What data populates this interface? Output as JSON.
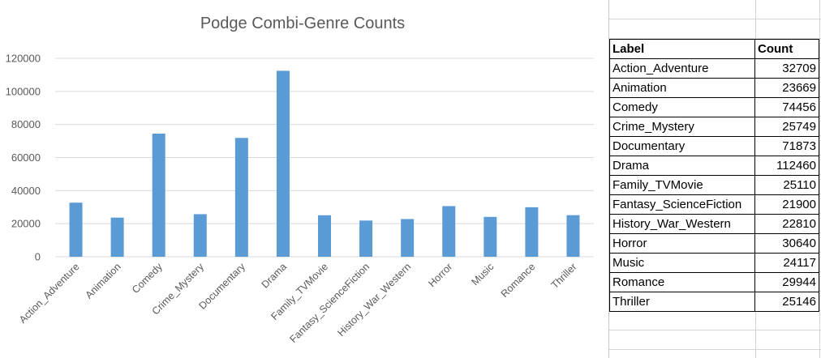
{
  "chart_data": {
    "type": "bar",
    "title": "Podge Combi-Genre Counts",
    "categories": [
      "Action_Adventure",
      "Animation",
      "Comedy",
      "Crime_Mystery",
      "Documentary",
      "Drama",
      "Family_TVMovie",
      "Fantasy_ScienceFiction",
      "History_War_Western",
      "Horror",
      "Music",
      "Romance",
      "Thriller"
    ],
    "values": [
      32709,
      23669,
      74456,
      25749,
      71873,
      112460,
      25110,
      21900,
      22810,
      30640,
      24117,
      29944,
      25146
    ],
    "ylim": [
      0,
      120000
    ],
    "yticks": [
      "0",
      "20000",
      "40000",
      "60000",
      "80000",
      "100000",
      "120000"
    ],
    "grid": true,
    "legend": "none",
    "bar_color": "#5b9bd5"
  },
  "table": {
    "headers": [
      "Label",
      "Count"
    ],
    "rows": [
      [
        "Action_Adventure",
        "32709"
      ],
      [
        "Animation",
        "23669"
      ],
      [
        "Comedy",
        "74456"
      ],
      [
        "Crime_Mystery",
        "25749"
      ],
      [
        "Documentary",
        "71873"
      ],
      [
        "Drama",
        "112460"
      ],
      [
        "Family_TVMovie",
        "25110"
      ],
      [
        "Fantasy_ScienceFiction",
        "21900"
      ],
      [
        "History_War_Western",
        "22810"
      ],
      [
        "Horror",
        "30640"
      ],
      [
        "Music",
        "24117"
      ],
      [
        "Romance",
        "29944"
      ],
      [
        "Thriller",
        "25146"
      ]
    ]
  }
}
